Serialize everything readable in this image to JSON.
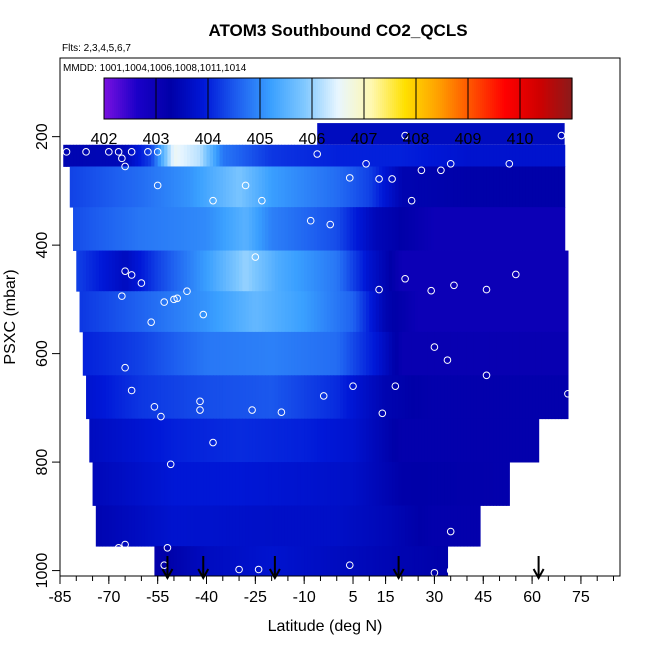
{
  "chart_data": {
    "type": "heatmap",
    "title": "ATOM3 Southbound CO2_QCLS",
    "subtitle_flights": "Flts: 2,3,4,5,6,7",
    "subtitle_dates": "MMDD: 1001,1004,1006,1008,1011,1014",
    "xlabel": "Latitude (deg N)",
    "ylabel": "PSXC (mbar)",
    "xlim": [
      -85,
      87
    ],
    "ylim": [
      1010,
      55
    ],
    "y_reversed": true,
    "x_ticks": [
      -85,
      -70,
      -55,
      -40,
      -25,
      -10,
      5,
      15,
      30,
      45,
      60,
      75
    ],
    "x_minor_step": 5,
    "y_ticks": [
      200,
      400,
      600,
      800,
      1000
    ],
    "colorbar": {
      "range": [
        402,
        411
      ],
      "ticks": [
        402,
        403,
        404,
        405,
        406,
        407,
        408,
        409,
        410
      ],
      "colors": [
        "#7a10e0",
        "#1a00c8",
        "#0000a8",
        "#0018d8",
        "#1e60f0",
        "#3aa0ff",
        "#80c8ff",
        "#e8f6ff",
        "#fff8b0",
        "#ffe000",
        "#ffa000",
        "#ff5000",
        "#ff0000",
        "#d00000",
        "#8b1a1a"
      ]
    },
    "field": {
      "rows": [
        {
          "p": 220,
          "lat_start": -84,
          "lat_end": 70,
          "values": [
            [
              -84,
              403.4
            ],
            [
              -65,
              403.5
            ],
            [
              -57,
              404.3
            ],
            [
              -50,
              406.6
            ],
            [
              -42,
              406.2
            ],
            [
              -35,
              404.8
            ],
            [
              -20,
              404.2
            ],
            [
              0,
              404.0
            ],
            [
              20,
              404.0
            ],
            [
              40,
              403.8
            ],
            [
              70,
              403.8
            ]
          ]
        },
        {
          "p": 290,
          "lat_start": -82,
          "lat_end": 70,
          "values": [
            [
              -82,
              404.3
            ],
            [
              -60,
              404.7
            ],
            [
              -45,
              405.1
            ],
            [
              -30,
              405.8
            ],
            [
              -20,
              405.2
            ],
            [
              0,
              404.7
            ],
            [
              10,
              404.3
            ],
            [
              20,
              403.4
            ],
            [
              40,
              403.3
            ],
            [
              70,
              403.3
            ]
          ]
        },
        {
          "p": 370,
          "lat_start": -81,
          "lat_end": 70,
          "values": [
            [
              -81,
              404.4
            ],
            [
              -60,
              404.8
            ],
            [
              -40,
              405.0
            ],
            [
              -28,
              405.5
            ],
            [
              -20,
              404.9
            ],
            [
              0,
              404.4
            ],
            [
              12,
              403.5
            ],
            [
              30,
              403.0
            ],
            [
              70,
              403.0
            ]
          ]
        },
        {
          "p": 450,
          "lat_start": -80,
          "lat_end": 71,
          "values": [
            [
              -80,
              404.3
            ],
            [
              -65,
              403.6
            ],
            [
              -55,
              404.3
            ],
            [
              -40,
              405.2
            ],
            [
              -28,
              406.0
            ],
            [
              -18,
              405.4
            ],
            [
              0,
              404.8
            ],
            [
              10,
              403.8
            ],
            [
              20,
              403.0
            ],
            [
              71,
              403.0
            ]
          ]
        },
        {
          "p": 520,
          "lat_start": -79,
          "lat_end": 71,
          "values": [
            [
              -79,
              404.2
            ],
            [
              -60,
              404.6
            ],
            [
              -40,
              405.1
            ],
            [
              -25,
              405.6
            ],
            [
              -10,
              405.2
            ],
            [
              5,
              404.6
            ],
            [
              15,
              403.4
            ],
            [
              25,
              403.0
            ],
            [
              71,
              403.0
            ]
          ]
        },
        {
          "p": 600,
          "lat_start": -78,
          "lat_end": 71,
          "values": [
            [
              -78,
              404.0
            ],
            [
              -60,
              404.3
            ],
            [
              -40,
              404.8
            ],
            [
              -20,
              404.9
            ],
            [
              0,
              404.7
            ],
            [
              12,
              403.9
            ],
            [
              20,
              403.1
            ],
            [
              71,
              403.1
            ]
          ]
        },
        {
          "p": 680,
          "lat_start": -77,
          "lat_end": 71,
          "values": [
            [
              -77,
              403.8
            ],
            [
              -60,
              404.2
            ],
            [
              -40,
              404.4
            ],
            [
              -20,
              404.5
            ],
            [
              0,
              404.1
            ],
            [
              15,
              403.4
            ],
            [
              30,
              403.2
            ],
            [
              71,
              403.2
            ]
          ]
        },
        {
          "p": 760,
          "lat_start": -76,
          "lat_end": 62,
          "values": [
            [
              -76,
              403.6
            ],
            [
              -50,
              404.0
            ],
            [
              -30,
              404.1
            ],
            [
              -10,
              404.0
            ],
            [
              5,
              403.8
            ],
            [
              20,
              403.2
            ],
            [
              62,
              403.2
            ]
          ]
        },
        {
          "p": 840,
          "lat_start": -75,
          "lat_end": 53,
          "values": [
            [
              -75,
              403.5
            ],
            [
              -50,
              403.9
            ],
            [
              -30,
              403.9
            ],
            [
              -10,
              403.8
            ],
            [
              5,
              403.7
            ],
            [
              20,
              403.3
            ],
            [
              53,
              403.2
            ]
          ]
        },
        {
          "p": 920,
          "lat_start": -74,
          "lat_end": 44,
          "values": [
            [
              -74,
              403.4
            ],
            [
              -50,
              403.8
            ],
            [
              -20,
              403.7
            ],
            [
              0,
              403.7
            ],
            [
              15,
              403.5
            ],
            [
              30,
              403.2
            ],
            [
              44,
              403.2
            ]
          ]
        },
        {
          "p": 990,
          "lat_start": -56,
          "lat_end": 34,
          "values": [
            [
              -56,
              403.2
            ],
            [
              -40,
              403.6
            ],
            [
              -20,
              403.8
            ],
            [
              0,
              403.6
            ],
            [
              20,
              403.4
            ],
            [
              34,
              403.3
            ]
          ]
        }
      ],
      "top_block": {
        "p_top": 175,
        "p_bottom": 215,
        "lat_start": -6,
        "lat_end": 70,
        "value": 403.6
      }
    },
    "sample_points": [
      [
        -83,
        228
      ],
      [
        -77,
        228
      ],
      [
        -70,
        228
      ],
      [
        -67,
        228
      ],
      [
        -66,
        240
      ],
      [
        -65,
        255
      ],
      [
        -63,
        228
      ],
      [
        -58,
        228
      ],
      [
        -55,
        228
      ],
      [
        -55,
        290
      ],
      [
        -38,
        318
      ],
      [
        -28,
        290
      ],
      [
        -23,
        318
      ],
      [
        -10,
        195
      ],
      [
        -8,
        355
      ],
      [
        -6,
        232
      ],
      [
        -2,
        362
      ],
      [
        4,
        276
      ],
      [
        9,
        250
      ],
      [
        13,
        278
      ],
      [
        17,
        278
      ],
      [
        21,
        198
      ],
      [
        23,
        318
      ],
      [
        26,
        262
      ],
      [
        35,
        250
      ],
      [
        32,
        262
      ],
      [
        53,
        250
      ],
      [
        69,
        198
      ],
      [
        -65,
        448
      ],
      [
        -63,
        455
      ],
      [
        -60,
        470
      ],
      [
        -57,
        542
      ],
      [
        -53,
        505
      ],
      [
        -50,
        500
      ],
      [
        -49,
        498
      ],
      [
        -46,
        485
      ],
      [
        -41,
        528
      ],
      [
        -66,
        494
      ],
      [
        -25,
        422
      ],
      [
        13,
        482
      ],
      [
        21,
        462
      ],
      [
        29,
        484
      ],
      [
        36,
        474
      ],
      [
        46,
        482
      ],
      [
        55,
        454
      ],
      [
        -65,
        626
      ],
      [
        -63,
        668
      ],
      [
        -56,
        698
      ],
      [
        -54,
        716
      ],
      [
        -42,
        688
      ],
      [
        -42,
        704
      ],
      [
        -26,
        704
      ],
      [
        -17,
        708
      ],
      [
        -4,
        678
      ],
      [
        5,
        660
      ],
      [
        14,
        710
      ],
      [
        18,
        660
      ],
      [
        30,
        588
      ],
      [
        34,
        612
      ],
      [
        46,
        640
      ],
      [
        71,
        674
      ],
      [
        -38,
        764
      ],
      [
        -51,
        804
      ],
      [
        35,
        928
      ],
      [
        -67,
        958
      ],
      [
        -65,
        952
      ],
      [
        -53,
        990
      ],
      [
        -52,
        958
      ],
      [
        -30,
        998
      ],
      [
        -24,
        998
      ],
      [
        4,
        990
      ],
      [
        30,
        1004
      ],
      [
        35,
        1000
      ]
    ],
    "arrows_lat": [
      -52,
      -41,
      -19,
      19,
      62
    ]
  }
}
